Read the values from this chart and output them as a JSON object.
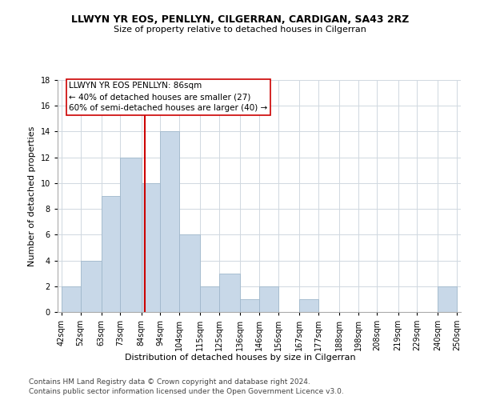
{
  "title": "LLWYN YR EOS, PENLLYN, CILGERRAN, CARDIGAN, SA43 2RZ",
  "subtitle": "Size of property relative to detached houses in Cilgerran",
  "xlabel": "Distribution of detached houses by size in Cilgerran",
  "ylabel": "Number of detached properties",
  "bin_labels": [
    "42sqm",
    "52sqm",
    "63sqm",
    "73sqm",
    "84sqm",
    "94sqm",
    "104sqm",
    "115sqm",
    "125sqm",
    "136sqm",
    "146sqm",
    "156sqm",
    "167sqm",
    "177sqm",
    "188sqm",
    "198sqm",
    "208sqm",
    "219sqm",
    "229sqm",
    "240sqm",
    "250sqm"
  ],
  "bin_edges": [
    42,
    52,
    63,
    73,
    84,
    94,
    104,
    115,
    125,
    136,
    146,
    156,
    167,
    177,
    188,
    198,
    208,
    219,
    229,
    240,
    250
  ],
  "counts": [
    2,
    4,
    9,
    12,
    10,
    14,
    6,
    2,
    3,
    1,
    2,
    0,
    1,
    0,
    0,
    0,
    0,
    0,
    0,
    2,
    0
  ],
  "bar_color": "#c8d8e8",
  "bar_edge_color": "#a0b8cc",
  "vline_x": 86,
  "vline_color": "#cc0000",
  "annotation_line1": "LLWYN YR EOS PENLLYN: 86sqm",
  "annotation_line2": "← 40% of detached houses are smaller (27)",
  "annotation_line3": "60% of semi-detached houses are larger (40) →",
  "annotation_box_edge": "#cc0000",
  "ylim": [
    0,
    18
  ],
  "yticks": [
    0,
    2,
    4,
    6,
    8,
    10,
    12,
    14,
    16,
    18
  ],
  "footer_line1": "Contains HM Land Registry data © Crown copyright and database right 2024.",
  "footer_line2": "Contains public sector information licensed under the Open Government Licence v3.0.",
  "background_color": "#ffffff",
  "grid_color": "#d0d8e0",
  "title_fontsize": 9,
  "subtitle_fontsize": 8,
  "ylabel_fontsize": 8,
  "xlabel_fontsize": 8,
  "tick_fontsize": 7,
  "annot_fontsize": 7.5,
  "footer_fontsize": 6.5
}
